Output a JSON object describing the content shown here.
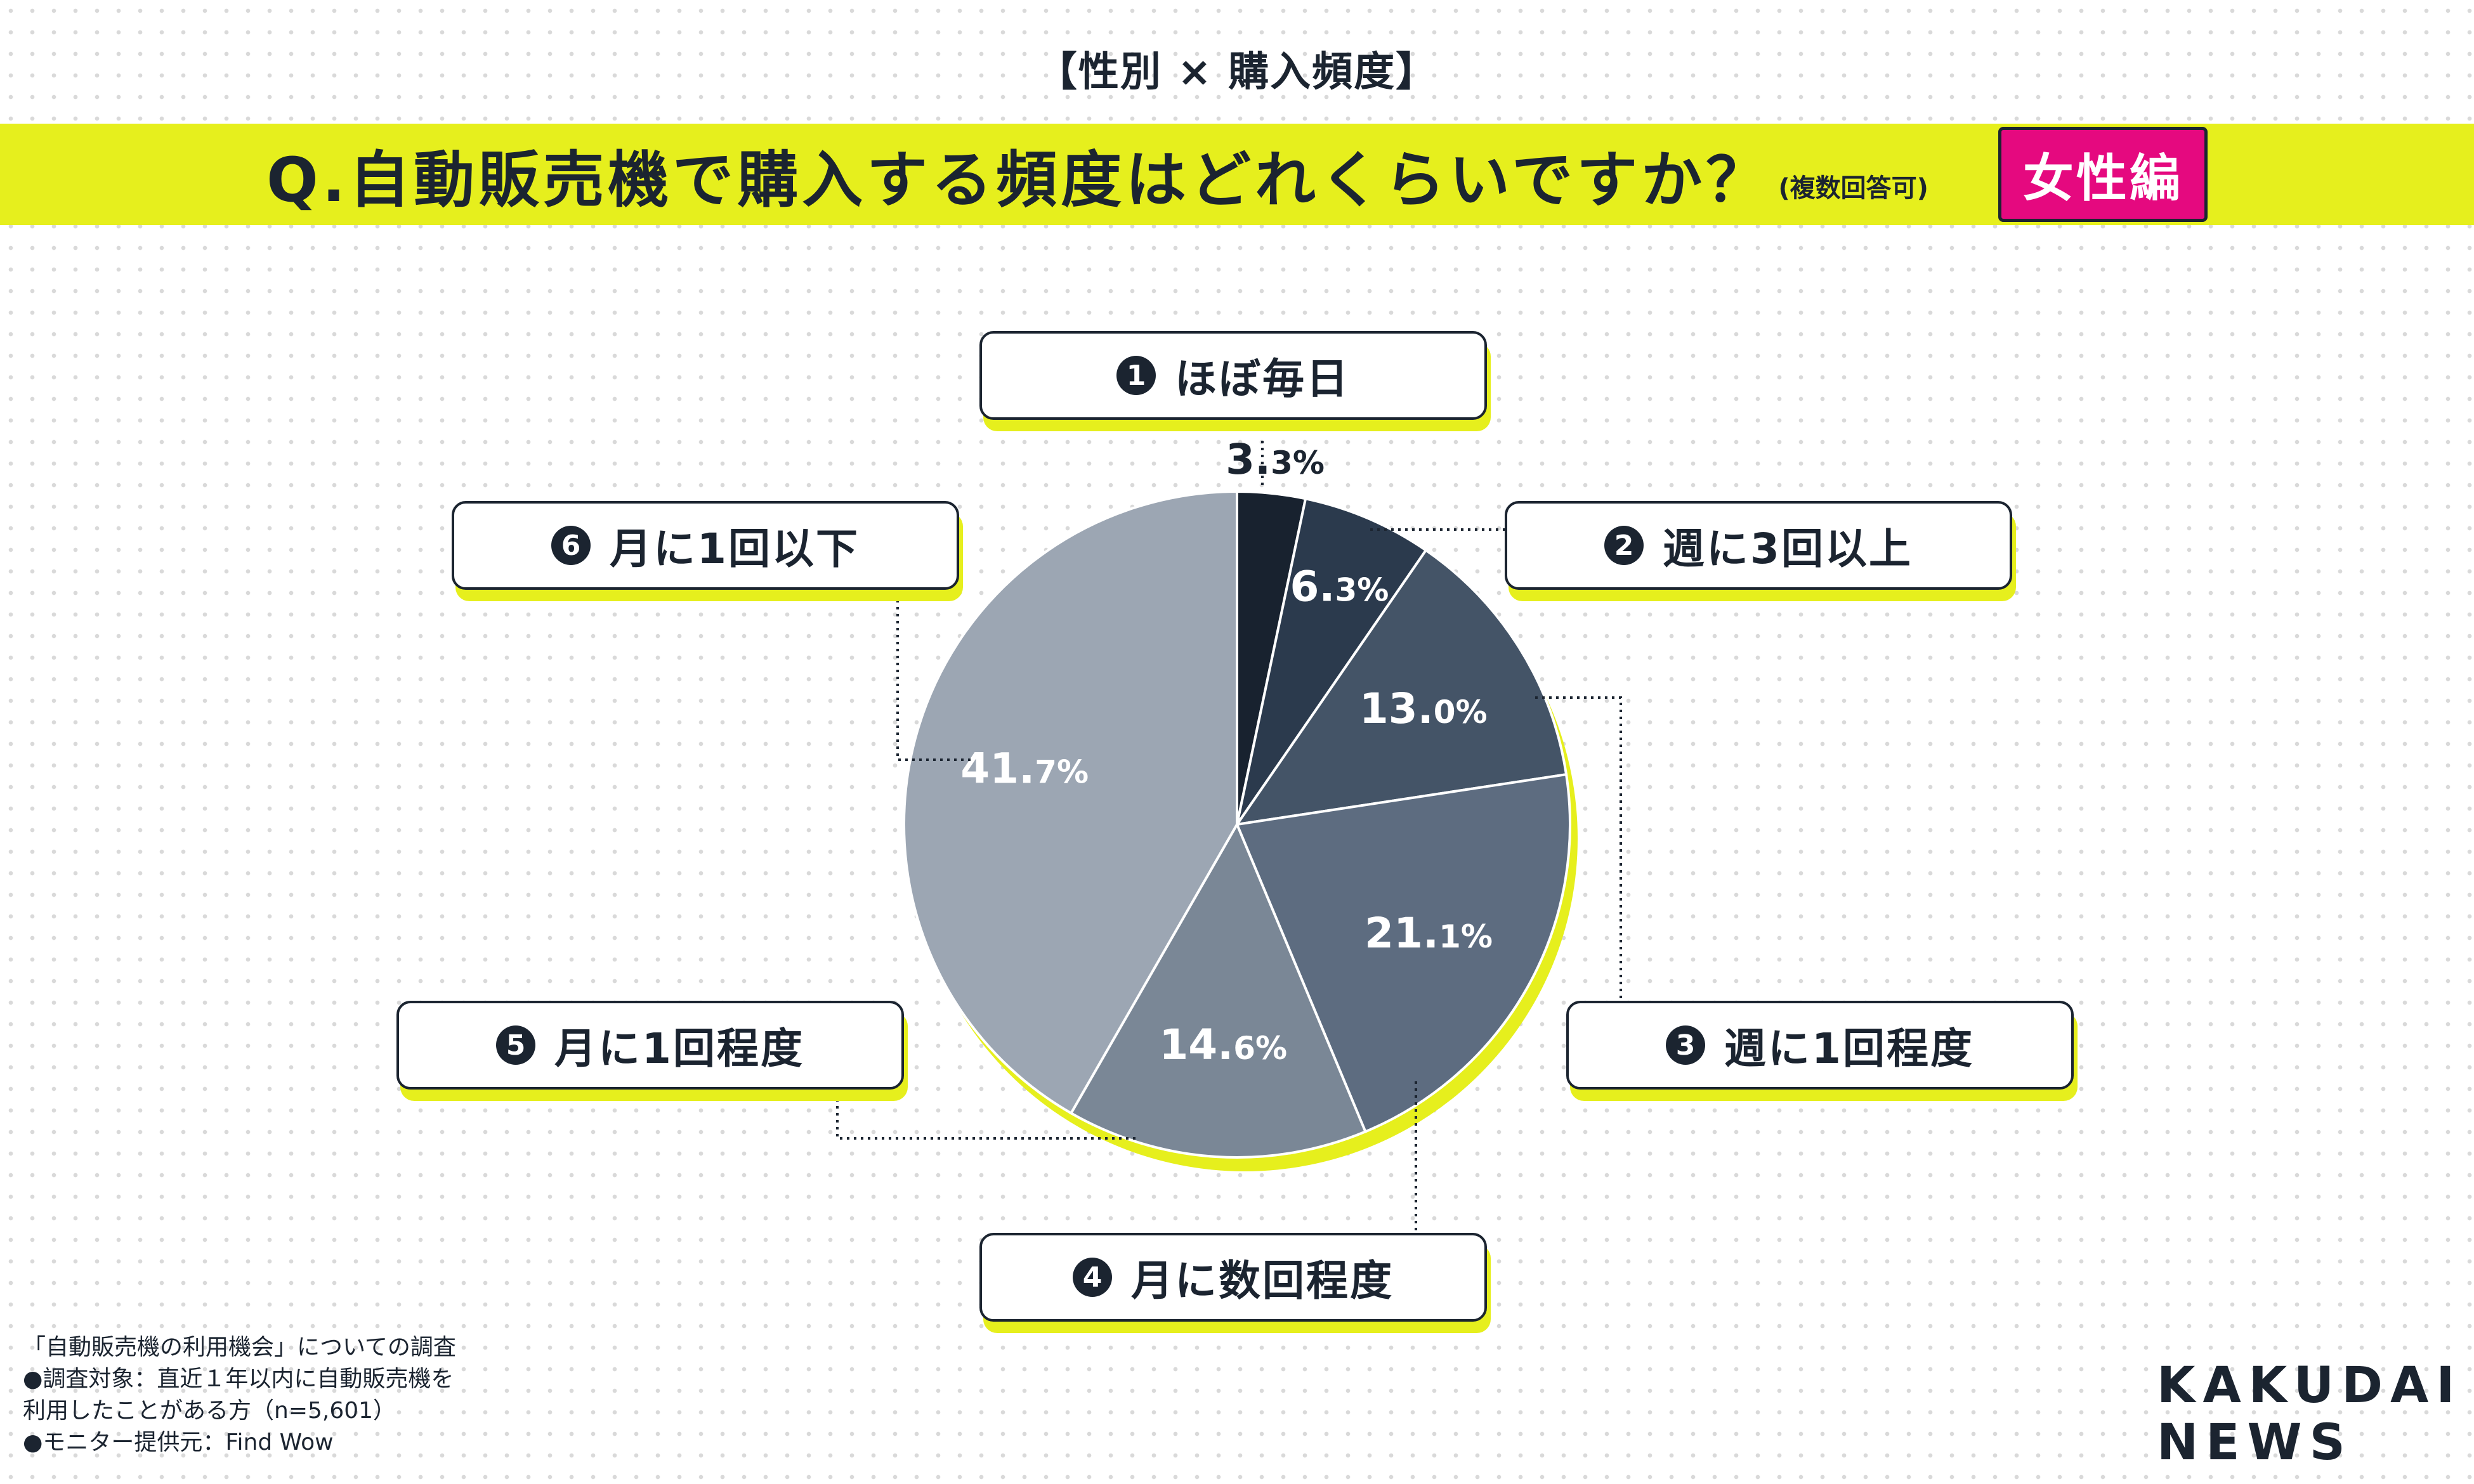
{
  "header": {
    "subtitle": "【性別 × 購入頻度】",
    "question": "Q.自動販売機で購入する頻度はどれくらいですか？",
    "question_note": "(複数回答可)",
    "badge": "女性編"
  },
  "colors": {
    "accent": "#e6ef1d",
    "badge": "#e5097f",
    "text": "#1b2430"
  },
  "chart_data": {
    "type": "pie",
    "categories": [
      "ほぼ毎日",
      "週に3回以上",
      "週に1回程度",
      "月に数回程度",
      "月に1回程度",
      "月に1回以下"
    ],
    "values": [
      3.3,
      6.3,
      13.0,
      21.1,
      14.6,
      41.7
    ],
    "value_labels": [
      {
        "int": "3.",
        "dec": "3%"
      },
      {
        "int": "6.",
        "dec": "3%"
      },
      {
        "int": "13.",
        "dec": "0%"
      },
      {
        "int": "21.",
        "dec": "1%"
      },
      {
        "int": "14.",
        "dec": "6%"
      },
      {
        "int": "41.",
        "dec": "7%"
      }
    ],
    "colors": [
      "#18222f",
      "#2b3a4d",
      "#445467",
      "#5d6c80",
      "#7a8796",
      "#9ca6b3"
    ],
    "label_colors": [
      "#1b2430",
      "#ffffff",
      "#ffffff",
      "#ffffff",
      "#ffffff",
      "#ffffff"
    ]
  },
  "legend": {
    "items": [
      {
        "num": "1",
        "label": "ほぼ毎日"
      },
      {
        "num": "2",
        "label": "週に3回以上"
      },
      {
        "num": "3",
        "label": "週に1回程度"
      },
      {
        "num": "4",
        "label": "月に数回程度"
      },
      {
        "num": "5",
        "label": "月に1回程度"
      },
      {
        "num": "6",
        "label": "月に1回以下"
      }
    ]
  },
  "footnote": {
    "line1": "「自動販売機の利用機会」についての調査",
    "line2": "●調査対象：直近１年以内に自動販売機を",
    "line3": "利用したことがある方（n=5,601）",
    "line4": "●モニター提供元：Find Wow"
  },
  "logo": {
    "line1": "KAKUDAI",
    "line2": "NEWS"
  }
}
